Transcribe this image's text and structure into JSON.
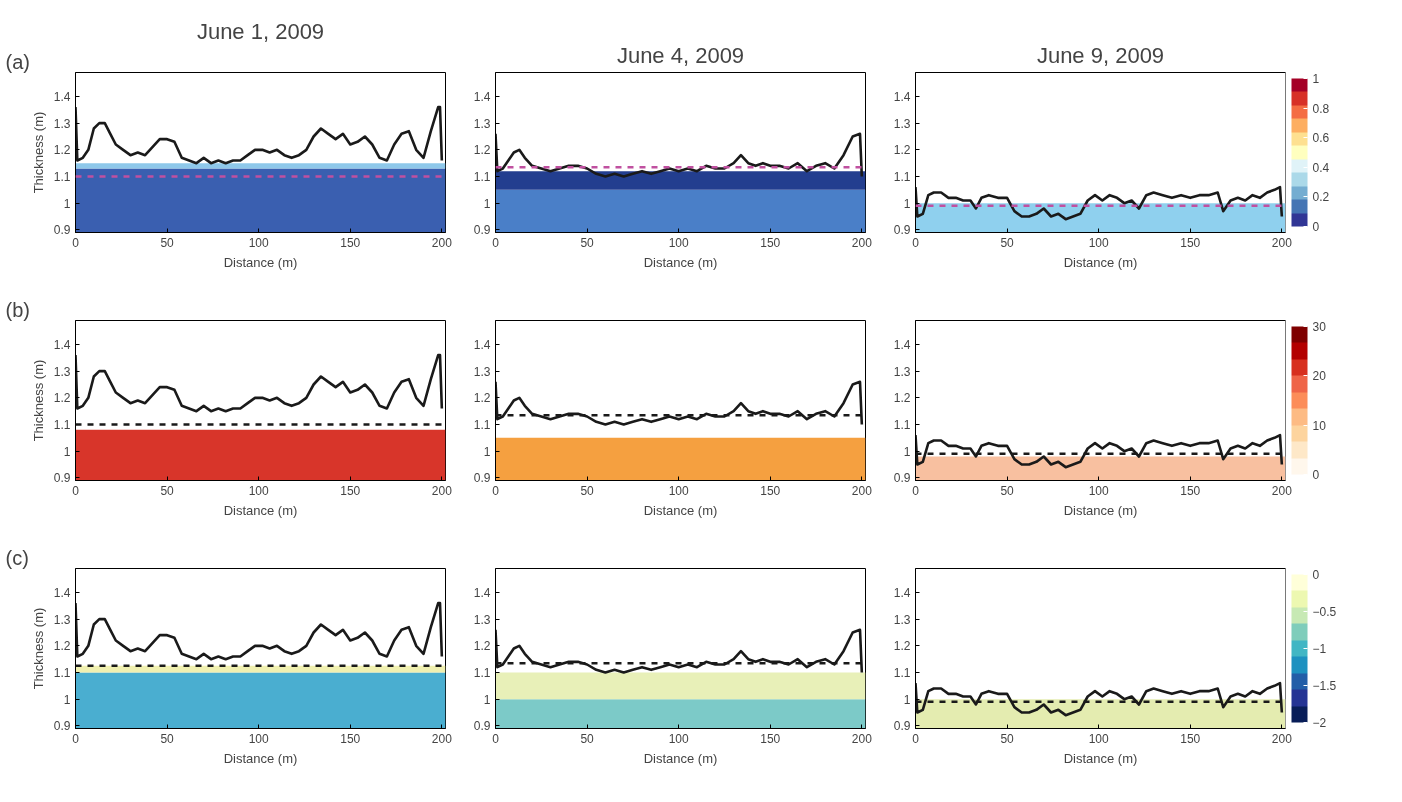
{
  "chart_data": [
    {
      "type": "line",
      "title": "June 1, 2009",
      "annotations": [
        "(a)"
      ],
      "xlabel": "Distance (m)",
      "ylabel": "Thickness (m)",
      "xlim": [
        0,
        202
      ],
      "ylim": [
        0.89,
        1.49
      ],
      "xticks": [
        0,
        50,
        100,
        150,
        200
      ],
      "yticks": [
        0.9,
        1,
        1.1,
        1.2,
        1.3,
        1.4
      ],
      "x": [
        0,
        1,
        4,
        7,
        10,
        13,
        16,
        19,
        22,
        26,
        30,
        34,
        38,
        42,
        46,
        50,
        54,
        58,
        62,
        66,
        70,
        74,
        78,
        82,
        86,
        90,
        94,
        98,
        102,
        106,
        110,
        114,
        118,
        122,
        126,
        130,
        134,
        138,
        142,
        146,
        150,
        154,
        158,
        162,
        166,
        170,
        174,
        178,
        182,
        186,
        190,
        194,
        198,
        199,
        200
      ],
      "series": [
        {
          "color": "#1a1a1a",
          "values": [
            1.36,
            1.16,
            1.17,
            1.2,
            1.28,
            1.3,
            1.3,
            1.26,
            1.22,
            1.2,
            1.18,
            1.19,
            1.18,
            1.21,
            1.24,
            1.24,
            1.23,
            1.17,
            1.16,
            1.15,
            1.17,
            1.15,
            1.16,
            1.15,
            1.16,
            1.16,
            1.18,
            1.2,
            1.2,
            1.19,
            1.2,
            1.18,
            1.17,
            1.18,
            1.2,
            1.25,
            1.28,
            1.26,
            1.24,
            1.26,
            1.22,
            1.23,
            1.25,
            1.22,
            1.17,
            1.16,
            1.22,
            1.26,
            1.27,
            1.2,
            1.17,
            1.27,
            1.36,
            1.36,
            1.16
          ]
        }
      ],
      "ref_lines": [
        {
          "axis": "y",
          "value": 1.1,
          "color": "#c050a0",
          "line_style": "dashed"
        }
      ],
      "bands": [
        {
          "axis": "y",
          "from": 0.89,
          "to": 1.13,
          "color": "#3a5fb0"
        },
        {
          "axis": "y",
          "from": 1.13,
          "to": 1.15,
          "color": "#8ec8ea"
        }
      ]
    },
    {
      "type": "line",
      "title": "June 4, 2009",
      "xlabel": "Distance (m)",
      "xlim": [
        0,
        202
      ],
      "ylim": [
        0.89,
        1.49
      ],
      "xticks": [
        0,
        50,
        100,
        150,
        200
      ],
      "yticks": [
        0.9,
        1,
        1.1,
        1.2,
        1.3,
        1.4
      ],
      "x": [
        0,
        1,
        4,
        7,
        10,
        13,
        16,
        20,
        25,
        30,
        35,
        40,
        45,
        50,
        55,
        60,
        65,
        70,
        75,
        80,
        85,
        90,
        95,
        100,
        105,
        110,
        115,
        120,
        125,
        130,
        134,
        138,
        142,
        146,
        150,
        155,
        160,
        165,
        170,
        175,
        180,
        185,
        190,
        195,
        199,
        200
      ],
      "series": [
        {
          "color": "#1a1a1a",
          "values": [
            1.26,
            1.12,
            1.13,
            1.16,
            1.19,
            1.2,
            1.17,
            1.14,
            1.13,
            1.12,
            1.13,
            1.14,
            1.14,
            1.13,
            1.11,
            1.1,
            1.11,
            1.1,
            1.11,
            1.12,
            1.11,
            1.12,
            1.13,
            1.12,
            1.13,
            1.12,
            1.14,
            1.13,
            1.13,
            1.15,
            1.18,
            1.15,
            1.14,
            1.15,
            1.14,
            1.14,
            1.13,
            1.15,
            1.12,
            1.14,
            1.15,
            1.13,
            1.18,
            1.25,
            1.26,
            1.1
          ]
        }
      ],
      "ref_lines": [
        {
          "axis": "y",
          "value": 1.135,
          "color": "#c050a0",
          "line_style": "dashed"
        }
      ],
      "bands": [
        {
          "axis": "y",
          "from": 0.89,
          "to": 1.05,
          "color": "#4a7fc8"
        },
        {
          "axis": "y",
          "from": 1.05,
          "to": 1.12,
          "color": "#233e8f"
        }
      ]
    },
    {
      "type": "line",
      "title": "June 9, 2009",
      "xlabel": "Distance (m)",
      "xlim": [
        0,
        202
      ],
      "ylim": [
        0.89,
        1.49
      ],
      "xticks": [
        0,
        50,
        100,
        150,
        200
      ],
      "yticks": [
        0.9,
        1,
        1.1,
        1.2,
        1.3,
        1.4
      ],
      "clim": [
        0,
        1
      ],
      "cticks": [
        0,
        0.2,
        0.4,
        0.6,
        0.8,
        1
      ],
      "x": [
        0,
        1,
        4,
        7,
        10,
        14,
        18,
        22,
        26,
        30,
        33,
        36,
        40,
        45,
        50,
        54,
        58,
        62,
        66,
        70,
        74,
        78,
        82,
        86,
        90,
        94,
        98,
        102,
        106,
        110,
        114,
        118,
        122,
        126,
        130,
        135,
        140,
        145,
        150,
        155,
        160,
        165,
        168,
        172,
        176,
        180,
        184,
        188,
        192,
        196,
        199,
        200
      ],
      "series": [
        {
          "color": "#1a1a1a",
          "values": [
            1.06,
            0.95,
            0.96,
            1.03,
            1.04,
            1.04,
            1.02,
            1.02,
            1.01,
            1.01,
            0.98,
            1.02,
            1.03,
            1.02,
            1.02,
            0.97,
            0.95,
            0.95,
            0.96,
            0.98,
            0.95,
            0.96,
            0.94,
            0.95,
            0.96,
            1.01,
            1.03,
            1.01,
            1.03,
            1.02,
            1.0,
            1.01,
            0.98,
            1.03,
            1.04,
            1.03,
            1.02,
            1.03,
            1.02,
            1.03,
            1.03,
            1.04,
            0.97,
            1.01,
            1.02,
            1.01,
            1.03,
            1.02,
            1.04,
            1.05,
            1.06,
            0.95
          ]
        }
      ],
      "ref_lines": [
        {
          "axis": "y",
          "value": 0.99,
          "color": "#c050a0",
          "line_style": "dashed"
        }
      ],
      "bands": [
        {
          "axis": "y",
          "from": 0.89,
          "to": 1.0,
          "color": "#8fd0ee"
        }
      ]
    },
    {
      "type": "line",
      "annotations": [
        "(b)"
      ],
      "xlabel": "Distance (m)",
      "ylabel": "Thickness (m)",
      "xlim": [
        0,
        202
      ],
      "ylim": [
        0.89,
        1.49
      ],
      "xticks": [
        0,
        50,
        100,
        150,
        200
      ],
      "yticks": [
        0.9,
        1,
        1.1,
        1.2,
        1.3,
        1.4
      ],
      "x": [
        0,
        1,
        4,
        7,
        10,
        13,
        16,
        19,
        22,
        26,
        30,
        34,
        38,
        42,
        46,
        50,
        54,
        58,
        62,
        66,
        70,
        74,
        78,
        82,
        86,
        90,
        94,
        98,
        102,
        106,
        110,
        114,
        118,
        122,
        126,
        130,
        134,
        138,
        142,
        146,
        150,
        154,
        158,
        162,
        166,
        170,
        174,
        178,
        182,
        186,
        190,
        194,
        198,
        199,
        200
      ],
      "series": [
        {
          "color": "#1a1a1a",
          "values": [
            1.36,
            1.16,
            1.17,
            1.2,
            1.28,
            1.3,
            1.3,
            1.26,
            1.22,
            1.2,
            1.18,
            1.19,
            1.18,
            1.21,
            1.24,
            1.24,
            1.23,
            1.17,
            1.16,
            1.15,
            1.17,
            1.15,
            1.16,
            1.15,
            1.16,
            1.16,
            1.18,
            1.2,
            1.2,
            1.19,
            1.2,
            1.18,
            1.17,
            1.18,
            1.2,
            1.25,
            1.28,
            1.26,
            1.24,
            1.26,
            1.22,
            1.23,
            1.25,
            1.22,
            1.17,
            1.16,
            1.22,
            1.26,
            1.27,
            1.2,
            1.17,
            1.27,
            1.36,
            1.36,
            1.16
          ]
        }
      ],
      "ref_lines": [
        {
          "axis": "y",
          "value": 1.1,
          "color": "#1a1a1a",
          "line_style": "dashed"
        }
      ],
      "bands": [
        {
          "axis": "y",
          "from": 0.89,
          "to": 1.08,
          "color": "#d8352a"
        }
      ]
    },
    {
      "type": "line",
      "xlabel": "Distance (m)",
      "xlim": [
        0,
        202
      ],
      "ylim": [
        0.89,
        1.49
      ],
      "xticks": [
        0,
        50,
        100,
        150,
        200
      ],
      "yticks": [
        0.9,
        1,
        1.1,
        1.2,
        1.3,
        1.4
      ],
      "x": [
        0,
        1,
        4,
        7,
        10,
        13,
        16,
        20,
        25,
        30,
        35,
        40,
        45,
        50,
        55,
        60,
        65,
        70,
        75,
        80,
        85,
        90,
        95,
        100,
        105,
        110,
        115,
        120,
        125,
        130,
        134,
        138,
        142,
        146,
        150,
        155,
        160,
        165,
        170,
        175,
        180,
        185,
        190,
        195,
        199,
        200
      ],
      "series": [
        {
          "color": "#1a1a1a",
          "values": [
            1.26,
            1.12,
            1.13,
            1.16,
            1.19,
            1.2,
            1.17,
            1.14,
            1.13,
            1.12,
            1.13,
            1.14,
            1.14,
            1.13,
            1.11,
            1.1,
            1.11,
            1.1,
            1.11,
            1.12,
            1.11,
            1.12,
            1.13,
            1.12,
            1.13,
            1.12,
            1.14,
            1.13,
            1.13,
            1.15,
            1.18,
            1.15,
            1.14,
            1.15,
            1.14,
            1.14,
            1.13,
            1.15,
            1.12,
            1.14,
            1.15,
            1.13,
            1.18,
            1.25,
            1.26,
            1.1
          ]
        }
      ],
      "ref_lines": [
        {
          "axis": "y",
          "value": 1.135,
          "color": "#1a1a1a",
          "line_style": "dashed"
        }
      ],
      "bands": [
        {
          "axis": "y",
          "from": 0.89,
          "to": 1.05,
          "color": "#f5a040"
        }
      ]
    },
    {
      "type": "line",
      "xlabel": "Distance (m)",
      "xlim": [
        0,
        202
      ],
      "ylim": [
        0.89,
        1.49
      ],
      "xticks": [
        0,
        50,
        100,
        150,
        200
      ],
      "yticks": [
        0.9,
        1,
        1.1,
        1.2,
        1.3,
        1.4
      ],
      "clim": [
        0,
        30
      ],
      "cticks": [
        0,
        10,
        20,
        30
      ],
      "x": [
        0,
        1,
        4,
        7,
        10,
        14,
        18,
        22,
        26,
        30,
        33,
        36,
        40,
        45,
        50,
        54,
        58,
        62,
        66,
        70,
        74,
        78,
        82,
        86,
        90,
        94,
        98,
        102,
        106,
        110,
        114,
        118,
        122,
        126,
        130,
        135,
        140,
        145,
        150,
        155,
        160,
        165,
        168,
        172,
        176,
        180,
        184,
        188,
        192,
        196,
        199,
        200
      ],
      "series": [
        {
          "color": "#1a1a1a",
          "values": [
            1.06,
            0.95,
            0.96,
            1.03,
            1.04,
            1.04,
            1.02,
            1.02,
            1.01,
            1.01,
            0.98,
            1.02,
            1.03,
            1.02,
            1.02,
            0.97,
            0.95,
            0.95,
            0.96,
            0.98,
            0.95,
            0.96,
            0.94,
            0.95,
            0.96,
            1.01,
            1.03,
            1.01,
            1.03,
            1.02,
            1.0,
            1.01,
            0.98,
            1.03,
            1.04,
            1.03,
            1.02,
            1.03,
            1.02,
            1.03,
            1.03,
            1.04,
            0.97,
            1.01,
            1.02,
            1.01,
            1.03,
            1.02,
            1.04,
            1.05,
            1.06,
            0.95
          ]
        }
      ],
      "ref_lines": [
        {
          "axis": "y",
          "value": 0.99,
          "color": "#1a1a1a",
          "line_style": "dashed"
        }
      ],
      "bands": [
        {
          "axis": "y",
          "from": 0.89,
          "to": 0.98,
          "color": "#f8c0a0"
        }
      ]
    },
    {
      "type": "line",
      "annotations": [
        "(c)"
      ],
      "xlabel": "Distance (m)",
      "ylabel": "Thickness (m)",
      "xlim": [
        0,
        202
      ],
      "ylim": [
        0.89,
        1.49
      ],
      "xticks": [
        0,
        50,
        100,
        150,
        200
      ],
      "yticks": [
        0.9,
        1,
        1.1,
        1.2,
        1.3,
        1.4
      ],
      "x": [
        0,
        1,
        4,
        7,
        10,
        13,
        16,
        19,
        22,
        26,
        30,
        34,
        38,
        42,
        46,
        50,
        54,
        58,
        62,
        66,
        70,
        74,
        78,
        82,
        86,
        90,
        94,
        98,
        102,
        106,
        110,
        114,
        118,
        122,
        126,
        130,
        134,
        138,
        142,
        146,
        150,
        154,
        158,
        162,
        166,
        170,
        174,
        178,
        182,
        186,
        190,
        194,
        198,
        199,
        200
      ],
      "series": [
        {
          "color": "#1a1a1a",
          "values": [
            1.36,
            1.16,
            1.17,
            1.2,
            1.28,
            1.3,
            1.3,
            1.26,
            1.22,
            1.2,
            1.18,
            1.19,
            1.18,
            1.21,
            1.24,
            1.24,
            1.23,
            1.17,
            1.16,
            1.15,
            1.17,
            1.15,
            1.16,
            1.15,
            1.16,
            1.16,
            1.18,
            1.2,
            1.2,
            1.19,
            1.2,
            1.18,
            1.17,
            1.18,
            1.2,
            1.25,
            1.28,
            1.26,
            1.24,
            1.26,
            1.22,
            1.23,
            1.25,
            1.22,
            1.17,
            1.16,
            1.22,
            1.26,
            1.27,
            1.2,
            1.17,
            1.27,
            1.36,
            1.36,
            1.16
          ]
        }
      ],
      "ref_lines": [
        {
          "axis": "y",
          "value": 1.125,
          "color": "#1a1a1a",
          "line_style": "dashed"
        }
      ],
      "bands": [
        {
          "axis": "y",
          "from": 0.89,
          "to": 1.1,
          "color": "#4aaed0"
        },
        {
          "axis": "y",
          "from": 1.1,
          "to": 1.125,
          "color": "#f0f0b0"
        }
      ]
    },
    {
      "type": "line",
      "xlabel": "Distance (m)",
      "xlim": [
        0,
        202
      ],
      "ylim": [
        0.89,
        1.49
      ],
      "xticks": [
        0,
        50,
        100,
        150,
        200
      ],
      "yticks": [
        0.9,
        1,
        1.1,
        1.2,
        1.3,
        1.4
      ],
      "x": [
        0,
        1,
        4,
        7,
        10,
        13,
        16,
        20,
        25,
        30,
        35,
        40,
        45,
        50,
        55,
        60,
        65,
        70,
        75,
        80,
        85,
        90,
        95,
        100,
        105,
        110,
        115,
        120,
        125,
        130,
        134,
        138,
        142,
        146,
        150,
        155,
        160,
        165,
        170,
        175,
        180,
        185,
        190,
        195,
        199,
        200
      ],
      "series": [
        {
          "color": "#1a1a1a",
          "values": [
            1.26,
            1.12,
            1.13,
            1.16,
            1.19,
            1.2,
            1.17,
            1.14,
            1.13,
            1.12,
            1.13,
            1.14,
            1.14,
            1.13,
            1.11,
            1.1,
            1.11,
            1.1,
            1.11,
            1.12,
            1.11,
            1.12,
            1.13,
            1.12,
            1.13,
            1.12,
            1.14,
            1.13,
            1.13,
            1.15,
            1.18,
            1.15,
            1.14,
            1.15,
            1.14,
            1.14,
            1.13,
            1.15,
            1.12,
            1.14,
            1.15,
            1.13,
            1.18,
            1.25,
            1.26,
            1.1
          ]
        }
      ],
      "ref_lines": [
        {
          "axis": "y",
          "value": 1.135,
          "color": "#1a1a1a",
          "line_style": "dashed"
        }
      ],
      "bands": [
        {
          "axis": "y",
          "from": 0.89,
          "to": 1.0,
          "color": "#7ccac8"
        },
        {
          "axis": "y",
          "from": 1.0,
          "to": 1.1,
          "color": "#e8f0b8"
        }
      ]
    },
    {
      "type": "line",
      "xlabel": "Distance (m)",
      "xlim": [
        0,
        202
      ],
      "ylim": [
        0.89,
        1.49
      ],
      "xticks": [
        0,
        50,
        100,
        150,
        200
      ],
      "yticks": [
        0.9,
        1,
        1.1,
        1.2,
        1.3,
        1.4
      ],
      "clim": [
        -2,
        0
      ],
      "cticks": [
        -2,
        -1.5,
        -1,
        -0.5,
        0
      ],
      "x": [
        0,
        1,
        4,
        7,
        10,
        14,
        18,
        22,
        26,
        30,
        33,
        36,
        40,
        45,
        50,
        54,
        58,
        62,
        66,
        70,
        74,
        78,
        82,
        86,
        90,
        94,
        98,
        102,
        106,
        110,
        114,
        118,
        122,
        126,
        130,
        135,
        140,
        145,
        150,
        155,
        160,
        165,
        168,
        172,
        176,
        180,
        184,
        188,
        192,
        196,
        199,
        200
      ],
      "series": [
        {
          "color": "#1a1a1a",
          "values": [
            1.06,
            0.95,
            0.96,
            1.03,
            1.04,
            1.04,
            1.02,
            1.02,
            1.01,
            1.01,
            0.98,
            1.02,
            1.03,
            1.02,
            1.02,
            0.97,
            0.95,
            0.95,
            0.96,
            0.98,
            0.95,
            0.96,
            0.94,
            0.95,
            0.96,
            1.01,
            1.03,
            1.01,
            1.03,
            1.02,
            1.0,
            1.01,
            0.98,
            1.03,
            1.04,
            1.03,
            1.02,
            1.03,
            1.02,
            1.03,
            1.03,
            1.04,
            0.97,
            1.01,
            1.02,
            1.01,
            1.03,
            1.02,
            1.04,
            1.05,
            1.06,
            0.95
          ]
        }
      ],
      "ref_lines": [
        {
          "axis": "y",
          "value": 0.99,
          "color": "#1a1a1a",
          "line_style": "dashed"
        }
      ],
      "bands": [
        {
          "axis": "y",
          "from": 0.89,
          "to": 1.0,
          "color": "#e4ecb0"
        }
      ]
    }
  ]
}
